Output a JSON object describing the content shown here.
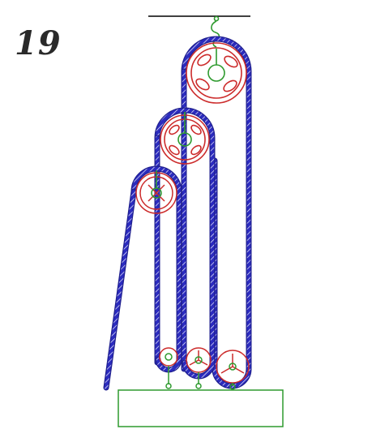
{
  "figure": {
    "number": "19"
  },
  "colors": {
    "rope": "#2b2bbf",
    "rope_twist": "#ffffff",
    "pulley_rim": "#cc2b2b",
    "frame": "#2e9a2e",
    "ceiling": "#000000"
  },
  "diagram": {
    "parts": [
      "ceiling",
      "ceiling-hook",
      "pulley-large",
      "pulley-medium",
      "pulley-small",
      "lower-pulley-left",
      "lower-pulley-middle",
      "lower-pulley-right",
      "load-block",
      "free-rope-end"
    ]
  }
}
